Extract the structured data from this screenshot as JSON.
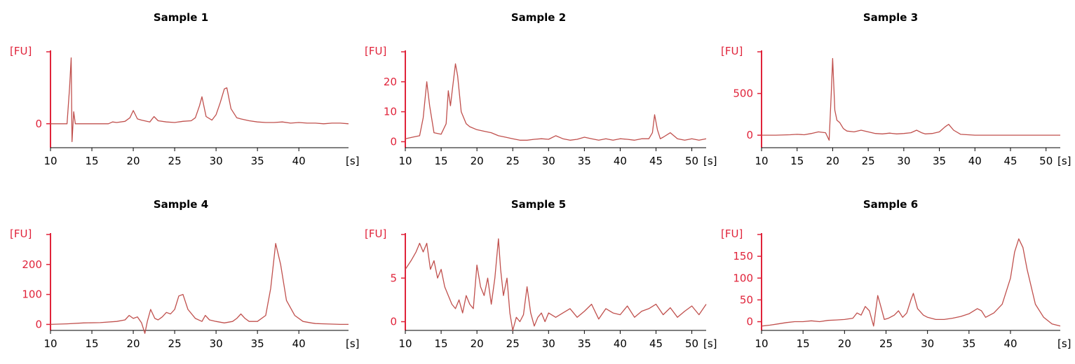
{
  "colors": {
    "axis": "#e0233a",
    "trace": "#c0504d",
    "text": "#000000"
  },
  "chart_data": [
    {
      "type": "line",
      "title": "Sample 1",
      "ylabel": "[FU]",
      "xlabel": "[s]",
      "xlim": [
        10,
        46
      ],
      "ylim": [
        -40,
        120
      ],
      "xticks": [
        10,
        15,
        20,
        25,
        30,
        35,
        40
      ],
      "yticks": [
        0
      ],
      "series": [
        {
          "x": [
            10,
            11,
            12,
            12.3,
            12.5,
            12.6,
            12.8,
            13,
            14,
            15,
            16,
            17,
            17.5,
            18,
            19,
            19.6,
            20,
            20.5,
            21,
            22,
            22.5,
            23,
            24,
            25,
            26,
            27,
            27.5,
            28,
            28.3,
            28.8,
            29.5,
            30,
            30.5,
            31,
            31.3,
            31.8,
            32.5,
            33,
            34,
            35,
            36,
            37,
            38,
            39,
            40,
            41,
            42,
            43,
            44,
            45,
            46
          ],
          "y": [
            0,
            0,
            0,
            60,
            110,
            -30,
            20,
            0,
            0,
            0,
            0,
            0,
            3,
            2,
            4,
            10,
            22,
            8,
            6,
            3,
            12,
            5,
            3,
            2,
            4,
            5,
            10,
            30,
            45,
            12,
            6,
            15,
            35,
            58,
            60,
            25,
            10,
            8,
            5,
            3,
            2,
            2,
            3,
            1,
            2,
            1,
            1,
            0,
            1,
            1,
            0
          ]
        }
      ]
    },
    {
      "type": "line",
      "title": "Sample 2",
      "ylabel": "[FU]",
      "xlabel": "[s]",
      "xlim": [
        10,
        52
      ],
      "ylim": [
        -2,
        30
      ],
      "xticks": [
        10,
        15,
        20,
        25,
        30,
        35,
        40,
        45,
        50
      ],
      "yticks": [
        0,
        10,
        20
      ],
      "series": [
        {
          "x": [
            10,
            11,
            12,
            12.5,
            13,
            13.4,
            14,
            15,
            15.7,
            16,
            16.3,
            16.6,
            17,
            17.3,
            17.8,
            18.5,
            19,
            20,
            21,
            22,
            23,
            24,
            25,
            26,
            27,
            28,
            29,
            30,
            31,
            32,
            33,
            34,
            35,
            36,
            37,
            38,
            39,
            40,
            41,
            42,
            43,
            44,
            44.5,
            44.8,
            45.2,
            45.6,
            46,
            47,
            48,
            49,
            50,
            51,
            52
          ],
          "y": [
            1,
            1.5,
            2,
            8,
            20,
            12,
            3,
            2.5,
            6,
            17,
            12,
            18,
            26,
            22,
            10,
            6,
            5,
            4,
            3.5,
            3,
            2,
            1.5,
            1,
            0.5,
            0.5,
            0.8,
            1,
            0.8,
            2,
            1,
            0.5,
            0.8,
            1.5,
            1,
            0.5,
            1,
            0.5,
            1,
            0.8,
            0.5,
            1,
            1,
            3,
            9,
            4,
            1,
            1.5,
            3,
            1,
            0.5,
            1,
            0.5,
            1
          ]
        }
      ]
    },
    {
      "type": "line",
      "title": "Sample 3",
      "ylabel": "[FU]",
      "xlabel": "[s]",
      "xlim": [
        10,
        52
      ],
      "ylim": [
        -150,
        1000
      ],
      "xticks": [
        10,
        15,
        20,
        25,
        30,
        35,
        40,
        45,
        50
      ],
      "yticks": [
        0,
        500
      ],
      "series": [
        {
          "x": [
            10,
            12,
            14,
            15,
            16,
            17,
            18,
            19,
            19.5,
            19.8,
            20,
            20.3,
            20.6,
            21,
            21.5,
            22,
            23,
            24,
            25,
            26,
            27,
            28,
            29,
            30,
            31,
            31.8,
            32.5,
            33,
            34,
            35,
            35.8,
            36.3,
            37,
            38,
            39,
            40,
            42,
            44,
            46,
            48,
            50,
            52
          ],
          "y": [
            0,
            0,
            5,
            10,
            5,
            20,
            40,
            30,
            -60,
            500,
            920,
            300,
            180,
            150,
            80,
            50,
            40,
            60,
            40,
            20,
            15,
            25,
            15,
            20,
            30,
            60,
            30,
            15,
            20,
            40,
            100,
            130,
            60,
            10,
            5,
            0,
            0,
            0,
            0,
            0,
            0,
            0
          ]
        }
      ]
    },
    {
      "type": "line",
      "title": "Sample 4",
      "ylabel": "[FU]",
      "xlabel": "[s]",
      "xlim": [
        10,
        46
      ],
      "ylim": [
        -20,
        300
      ],
      "xticks": [
        10,
        15,
        20,
        25,
        30,
        35,
        40
      ],
      "yticks": [
        0,
        100,
        200
      ],
      "series": [
        {
          "x": [
            10,
            12,
            14,
            16,
            18,
            19,
            19.5,
            20,
            20.5,
            21,
            21.4,
            21.7,
            22.1,
            22.6,
            23,
            23.5,
            24,
            24.5,
            25,
            25.5,
            26,
            26.6,
            27.5,
            28.3,
            28.7,
            29.2,
            30,
            31,
            32,
            32.5,
            33,
            33.5,
            34,
            35,
            36,
            36.6,
            37.2,
            37.8,
            38.5,
            39.5,
            40.5,
            41.5,
            42,
            43,
            44,
            45,
            46
          ],
          "y": [
            0,
            2,
            5,
            6,
            10,
            15,
            30,
            20,
            25,
            5,
            -30,
            10,
            50,
            20,
            15,
            25,
            40,
            35,
            50,
            95,
            100,
            50,
            20,
            10,
            30,
            15,
            10,
            5,
            10,
            20,
            35,
            20,
            10,
            10,
            30,
            120,
            270,
            200,
            80,
            30,
            10,
            5,
            3,
            2,
            1,
            0,
            0
          ]
        }
      ]
    },
    {
      "type": "line",
      "title": "Sample 5",
      "ylabel": "[FU]",
      "xlabel": "[s]",
      "xlim": [
        10,
        52
      ],
      "ylim": [
        -1,
        10
      ],
      "xticks": [
        10,
        15,
        20,
        25,
        30,
        35,
        40,
        45,
        50
      ],
      "yticks": [
        0,
        5
      ],
      "series": [
        {
          "x": [
            10,
            10.8,
            11.5,
            12,
            12.5,
            13,
            13.5,
            14,
            14.5,
            15,
            15.5,
            16,
            16.5,
            17,
            17.5,
            18,
            18.5,
            19,
            19.5,
            20,
            20.5,
            21,
            21.5,
            22,
            22.5,
            23,
            23.3,
            23.7,
            24.2,
            24.6,
            25,
            25.5,
            26,
            26.5,
            27,
            27.5,
            28,
            28.5,
            29,
            29.5,
            30,
            31,
            32,
            33,
            34,
            35,
            36,
            37,
            38,
            39,
            40,
            41,
            42,
            43,
            44,
            45,
            46,
            47,
            48,
            49,
            50,
            51,
            52
          ],
          "y": [
            6,
            7,
            8,
            9,
            8,
            9,
            6,
            7,
            5,
            6,
            4,
            3,
            2,
            1.5,
            2.5,
            1,
            3,
            2,
            1.5,
            6.5,
            4,
            3,
            5,
            2,
            5,
            9.5,
            6,
            3,
            5,
            1,
            -1,
            0.5,
            0,
            0.8,
            4,
            1,
            -0.5,
            0.5,
            1,
            0,
            1,
            0.5,
            1,
            1.5,
            0.5,
            1.2,
            2,
            0.3,
            1.5,
            1,
            0.8,
            1.8,
            0.5,
            1.2,
            1.5,
            2,
            0.8,
            1.6,
            0.5,
            1.2,
            1.8,
            0.8,
            2
          ]
        }
      ]
    },
    {
      "type": "line",
      "title": "Sample 6",
      "ylabel": "[FU]",
      "xlabel": "[s]",
      "xlim": [
        10,
        46
      ],
      "ylim": [
        -20,
        200
      ],
      "xticks": [
        10,
        15,
        20,
        25,
        30,
        35,
        40
      ],
      "yticks": [
        0,
        50,
        100,
        150
      ],
      "series": [
        {
          "x": [
            10,
            11,
            12,
            13,
            14,
            15,
            16,
            17,
            18,
            19,
            20,
            21,
            21.5,
            22,
            22.5,
            23,
            23.5,
            24,
            24.3,
            24.8,
            25.3,
            26,
            26.5,
            27,
            27.5,
            28,
            28.3,
            28.8,
            29.5,
            30,
            31,
            32,
            33,
            34,
            35,
            36,
            36.5,
            37,
            38,
            39,
            40,
            40.5,
            41,
            41.5,
            42,
            43,
            44,
            45,
            46
          ],
          "y": [
            -10,
            -8,
            -5,
            -2,
            0,
            0,
            2,
            0,
            3,
            4,
            5,
            8,
            20,
            15,
            35,
            25,
            -10,
            60,
            40,
            5,
            8,
            15,
            25,
            10,
            20,
            50,
            65,
            30,
            15,
            10,
            5,
            5,
            8,
            12,
            18,
            30,
            25,
            10,
            20,
            40,
            100,
            160,
            190,
            170,
            120,
            40,
            10,
            -5,
            -10
          ]
        }
      ]
    }
  ]
}
